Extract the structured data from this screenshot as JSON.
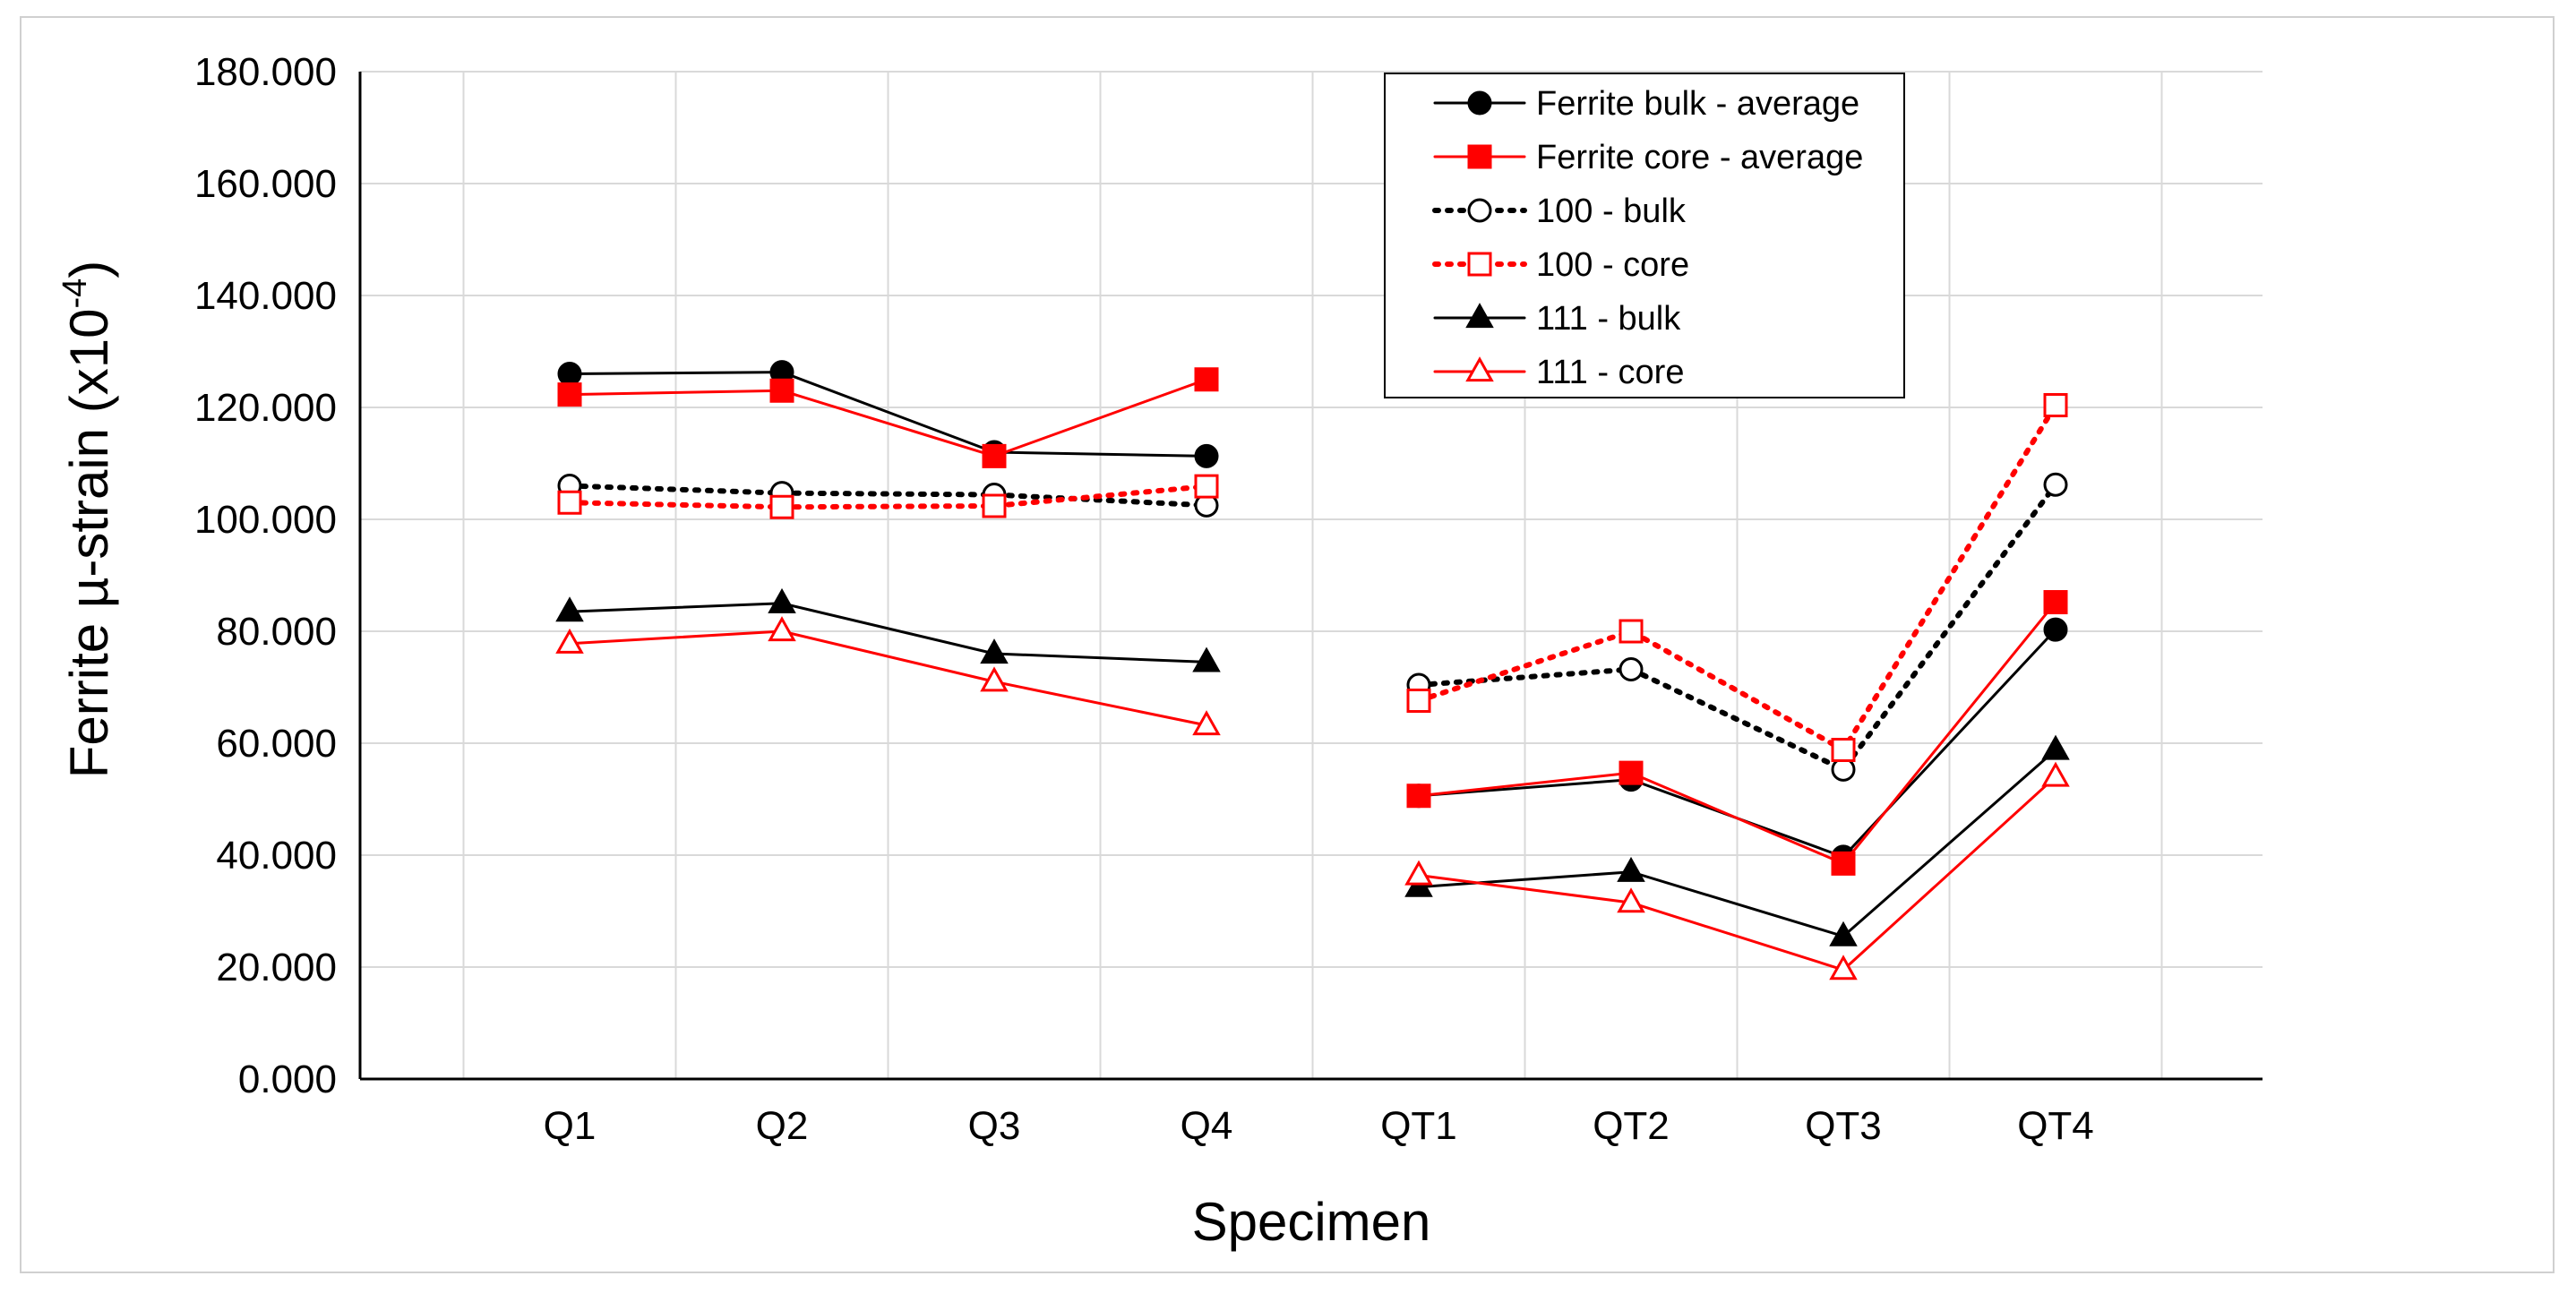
{
  "chart_data": {
    "type": "line",
    "title": "",
    "xlabel": "Specimen",
    "ylabel": "Ferrite µ-strain (x10",
    "ylabel_exponent": "-4",
    "ylabel_close": ")",
    "ylim": [
      0,
      180
    ],
    "ytick_values": [
      0,
      20,
      40,
      60,
      80,
      100,
      120,
      140,
      160,
      180
    ],
    "ytick_labels": [
      "0.000",
      "20.000",
      "40.000",
      "60.000",
      "80.000",
      "100.000",
      "120.000",
      "140.000",
      "160.000",
      "180.000"
    ],
    "grid": true,
    "legend_position": "top-right",
    "categories": [
      "Q1",
      "Q2",
      "Q3",
      "Q4",
      "QT1",
      "QT2",
      "QT3",
      "QT4"
    ],
    "series": [
      {
        "name": "Ferrite bulk - average",
        "color": "#000000",
        "dash": "solid",
        "marker": "circle",
        "filled": true,
        "values": [
          126,
          126.3,
          112,
          111.3,
          50.6,
          53.5,
          39.7,
          80.3
        ]
      },
      {
        "name": "Ferrite core - average",
        "color": "#ff0000",
        "dash": "solid",
        "marker": "square",
        "filled": true,
        "values": [
          122.3,
          123,
          111.3,
          125,
          50.6,
          54.7,
          38.5,
          85.2
        ]
      },
      {
        "name": "100 - bulk",
        "color": "#000000",
        "dash": "dotted",
        "marker": "circle",
        "filled": false,
        "values": [
          106,
          104.7,
          104.4,
          102.5,
          70.4,
          73.2,
          55.3,
          106.2
        ]
      },
      {
        "name": "100 - core",
        "color": "#ff0000",
        "dash": "dotted",
        "marker": "square",
        "filled": false,
        "values": [
          103,
          102.2,
          102.4,
          105.9,
          67.6,
          80,
          58.8,
          120.4
        ]
      },
      {
        "name": "111 - bulk",
        "color": "#000000",
        "dash": "solid",
        "marker": "triangle",
        "filled": true,
        "values": [
          83.5,
          85,
          76,
          74.5,
          34.3,
          37,
          25.5,
          58.8
        ]
      },
      {
        "name": "111 - core",
        "color": "#ff0000",
        "dash": "solid",
        "marker": "triangle",
        "filled": false,
        "values": [
          77.8,
          80,
          71,
          63.2,
          36.4,
          31.5,
          19.5,
          54
        ]
      }
    ]
  }
}
